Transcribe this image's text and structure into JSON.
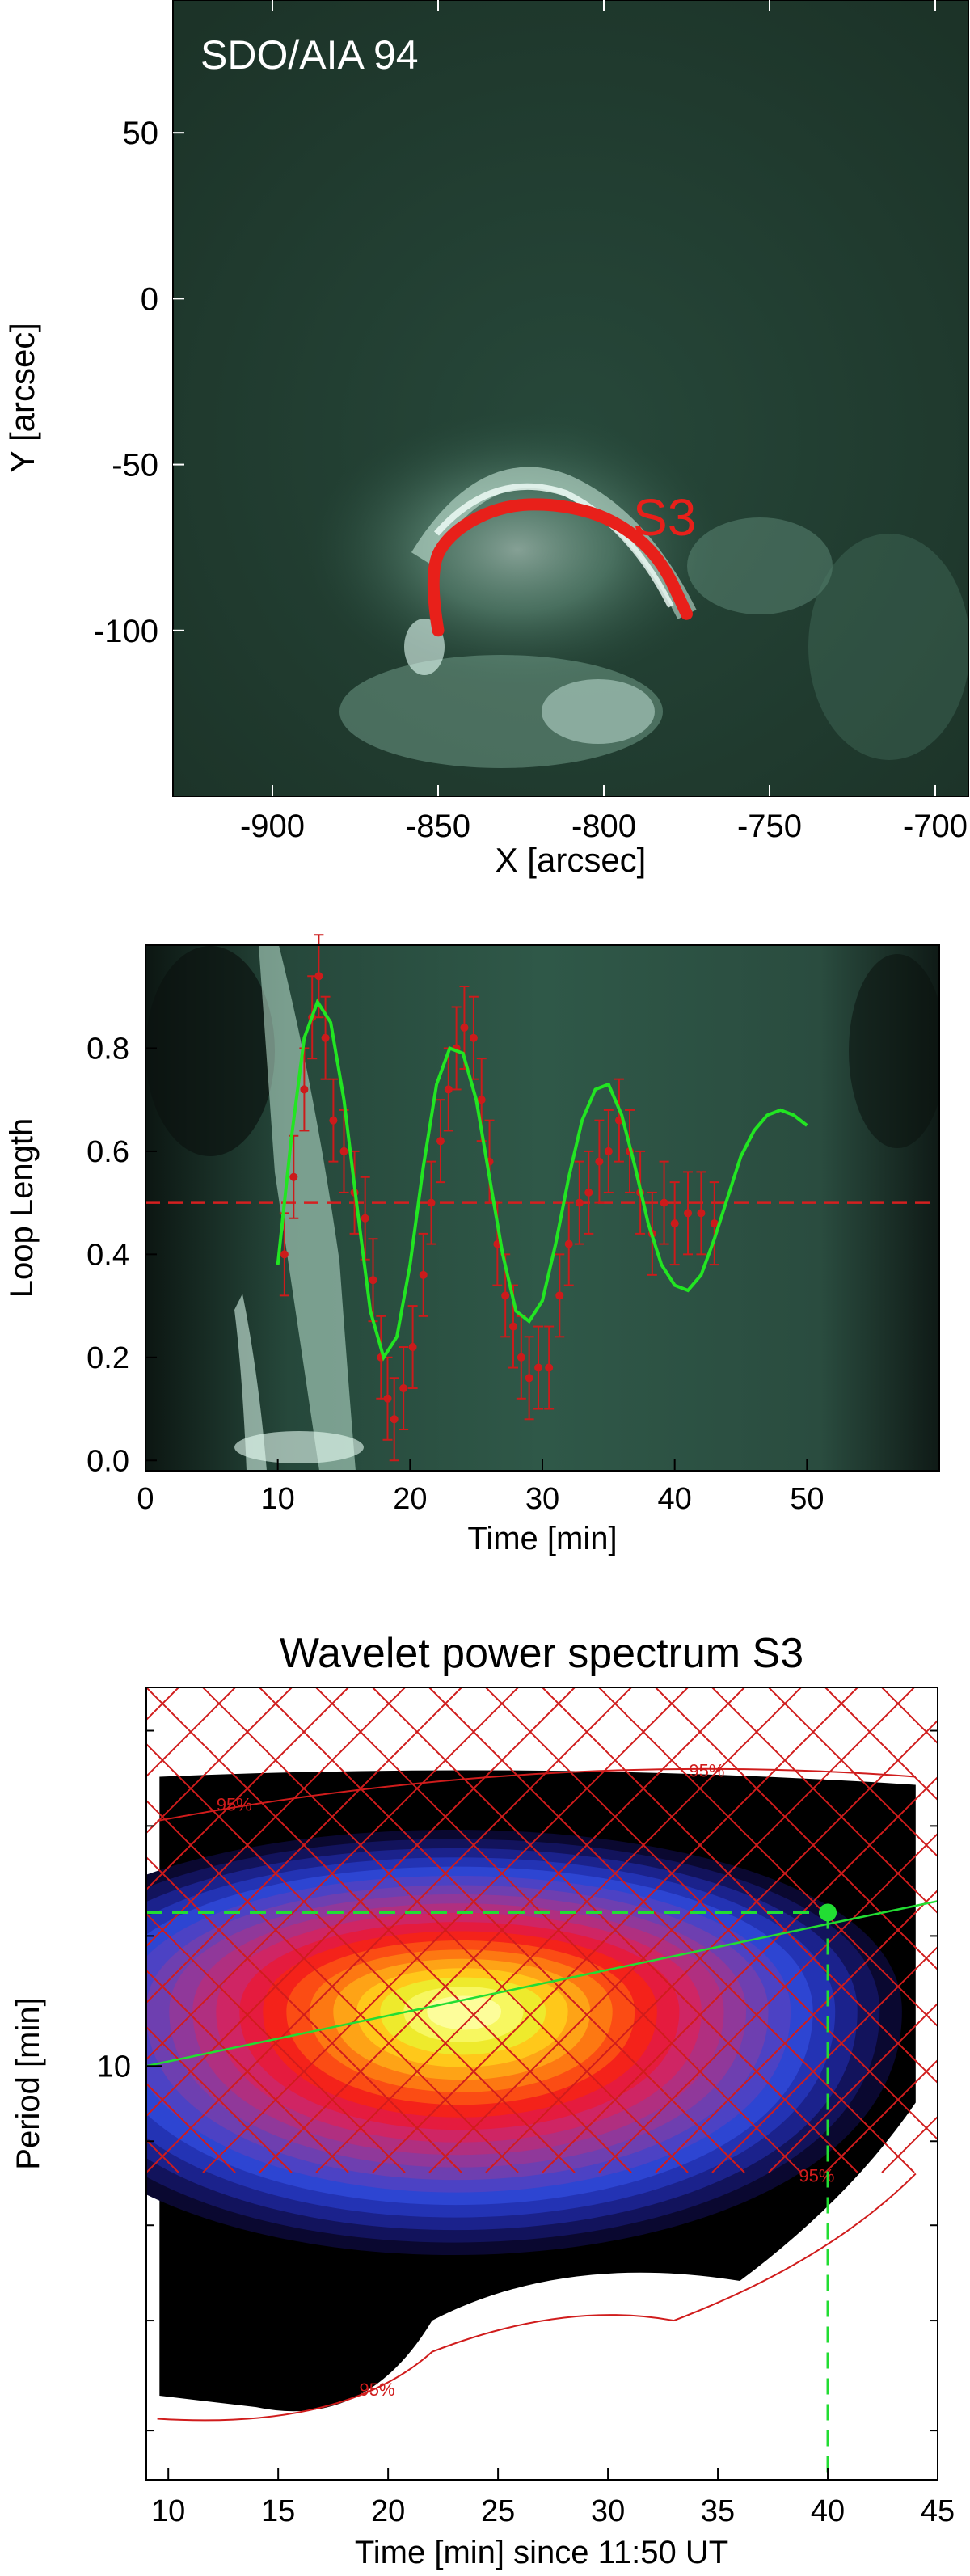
{
  "chart_data": [
    {
      "type": "image",
      "title": "SDO/AIA 94",
      "xlabel": "X [arcsec]",
      "ylabel": "Y [arcsec]",
      "xlim": [
        -930,
        -690
      ],
      "ylim": [
        -150,
        90
      ],
      "xticks": [
        -900,
        -850,
        -800,
        -750,
        -700
      ],
      "yticks": [
        50,
        0,
        -50,
        -100
      ],
      "annotation": "S3",
      "loop_color": "#e8201a",
      "loop_points": [
        [
          -850,
          -100
        ],
        [
          -853,
          -82
        ],
        [
          -846,
          -70
        ],
        [
          -830,
          -62
        ],
        [
          -812,
          -62
        ],
        [
          -796,
          -67
        ],
        [
          -783,
          -78
        ],
        [
          -775,
          -95
        ]
      ]
    },
    {
      "type": "line",
      "xlabel": "Time [min]",
      "ylabel": "Loop Length",
      "xlim": [
        0,
        60
      ],
      "ylim": [
        -0.02,
        1.0
      ],
      "xticks": [
        0,
        10,
        20,
        30,
        40,
        50
      ],
      "yticks": [
        0.0,
        0.2,
        0.4,
        0.6,
        0.8
      ],
      "reference_line": 0.5,
      "fit": {
        "name": "damped sine fit",
        "color": "#22e522",
        "x": [
          10,
          11,
          12,
          13,
          14,
          15,
          16,
          17,
          18,
          19,
          20,
          21,
          22,
          23,
          24,
          25,
          26,
          27,
          28,
          29,
          30,
          31,
          32,
          33,
          34,
          35,
          36,
          37,
          38,
          39,
          40,
          41,
          42,
          43,
          44,
          45,
          46,
          47,
          48,
          49,
          50
        ],
        "y": [
          0.38,
          0.62,
          0.82,
          0.89,
          0.85,
          0.7,
          0.49,
          0.29,
          0.2,
          0.24,
          0.38,
          0.57,
          0.73,
          0.8,
          0.79,
          0.7,
          0.55,
          0.4,
          0.29,
          0.27,
          0.31,
          0.42,
          0.55,
          0.66,
          0.72,
          0.73,
          0.67,
          0.57,
          0.46,
          0.38,
          0.34,
          0.33,
          0.36,
          0.43,
          0.51,
          0.59,
          0.64,
          0.67,
          0.68,
          0.67,
          0.65
        ]
      },
      "measurements": {
        "name": "measured loop length",
        "color": "#cc1b1b",
        "x": [
          10.5,
          11.2,
          12.0,
          12.6,
          13.1,
          13.6,
          14.2,
          15.0,
          15.8,
          16.6,
          17.2,
          17.8,
          18.3,
          18.8,
          19.5,
          20.2,
          21.0,
          21.6,
          22.3,
          22.9,
          23.5,
          24.1,
          24.8,
          25.4,
          26.0,
          26.6,
          27.2,
          27.8,
          28.4,
          29.0,
          29.7,
          30.5,
          31.3,
          32.0,
          32.8,
          33.5,
          34.3,
          35.0,
          35.8,
          36.6,
          37.4,
          38.3,
          39.2,
          40.0,
          41.0,
          42.0,
          43.0
        ],
        "y": [
          0.4,
          0.55,
          0.72,
          0.86,
          0.94,
          0.82,
          0.66,
          0.6,
          0.52,
          0.47,
          0.35,
          0.2,
          0.12,
          0.08,
          0.14,
          0.22,
          0.36,
          0.5,
          0.62,
          0.72,
          0.8,
          0.84,
          0.82,
          0.7,
          0.58,
          0.42,
          0.32,
          0.26,
          0.2,
          0.16,
          0.18,
          0.18,
          0.32,
          0.42,
          0.5,
          0.52,
          0.58,
          0.6,
          0.66,
          0.6,
          0.52,
          0.44,
          0.5,
          0.46,
          0.48,
          0.48,
          0.46
        ],
        "error": 0.08
      }
    },
    {
      "type": "heatmap",
      "title": "Wavelet power spectrum S3",
      "xlabel": "Time [min] since 11:50 UT",
      "ylabel": "Period [min]",
      "xlim": [
        9,
        45
      ],
      "period_range": [
        5.6,
        17.0
      ],
      "xticks": [
        10,
        15,
        20,
        25,
        30,
        35,
        40,
        45
      ],
      "yticks": [
        10
      ],
      "significance_label": "95%",
      "significance_labels": [
        {
          "text": "95%",
          "t": 13,
          "p": 14.3
        },
        {
          "text": "95%",
          "t": 34.5,
          "p": 15.0
        },
        {
          "text": "95%",
          "t": 19.5,
          "p": 6.3
        },
        {
          "text": "95%",
          "t": 39.5,
          "p": 8.5
        }
      ],
      "peak": {
        "time": 23.5,
        "period": 10.8
      },
      "marker": {
        "time": 40,
        "period": 12.4,
        "color": "#22dd33"
      },
      "trend_line": {
        "start": [
          9,
          10.0
        ],
        "end": [
          45,
          12.6
        ]
      },
      "color_levels": [
        "#000000",
        "#0a0830",
        "#12135c",
        "#1b228c",
        "#2333b4",
        "#2d45d2",
        "#4c42c4",
        "#6e3fb0",
        "#90389a",
        "#b02f80",
        "#cf2564",
        "#e51b3e",
        "#f4221a",
        "#fb4c14",
        "#fd7812",
        "#fea316",
        "#ffc81a",
        "#eeea2c",
        "#f7f760",
        "#fdfd9a"
      ]
    }
  ]
}
